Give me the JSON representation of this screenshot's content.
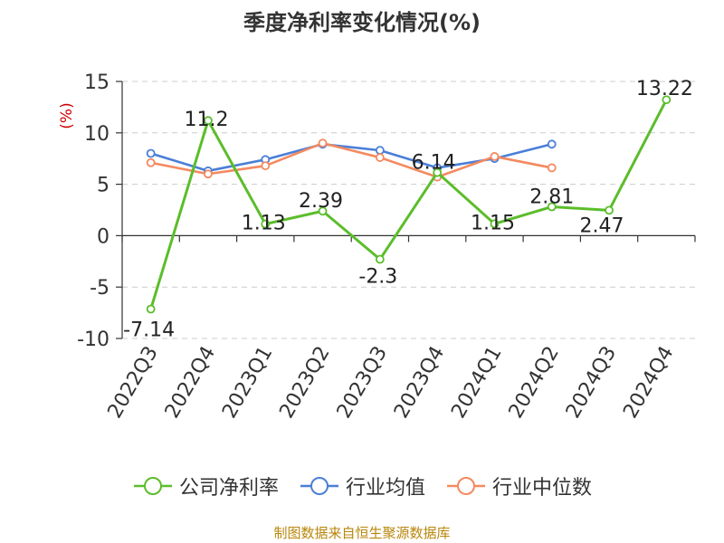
{
  "title": "季度净利率变化情况(%)",
  "source": "制图数据来自恒生聚源数据库",
  "chart_data": {
    "type": "line",
    "title": "季度净利率变化情况(%)",
    "ylabel": "(%)",
    "ylabel_color": "#cc0000",
    "ylim": [
      -10,
      15
    ],
    "yticks": [
      15,
      10,
      5,
      0,
      -5,
      -10
    ],
    "grid": "horizontal-dashed",
    "legend_placement": "bottom-center",
    "categories": [
      "2022Q3",
      "2022Q4",
      "2023Q1",
      "2023Q2",
      "2023Q3",
      "2023Q4",
      "2024Q1",
      "2024Q2",
      "2024Q3",
      "2024Q4"
    ],
    "series": [
      {
        "name": "公司净利率",
        "color": "#5bbd2b",
        "values": [
          -7.14,
          11.2,
          1.13,
          2.39,
          -2.3,
          6.14,
          1.15,
          2.81,
          2.47,
          13.22
        ],
        "labels": [
          "-7.14",
          "11.2",
          "1.13",
          "2.39",
          "-2.3",
          "6.14",
          "1.15",
          "2.81",
          "2.47",
          "13.22"
        ]
      },
      {
        "name": "行业均值",
        "color": "#4a7fd8",
        "values": [
          8.0,
          6.3,
          7.4,
          8.9,
          8.3,
          6.6,
          7.5,
          8.9,
          null,
          null
        ]
      },
      {
        "name": "行业中位数",
        "color": "#f4895f",
        "values": [
          7.1,
          6.0,
          6.8,
          9.0,
          7.6,
          5.7,
          7.7,
          6.6,
          null,
          null
        ]
      }
    ]
  }
}
